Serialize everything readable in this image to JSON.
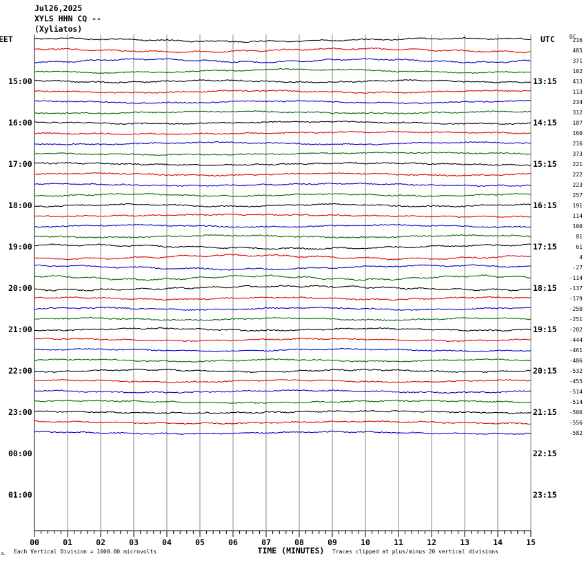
{
  "header": {
    "date": "Jul26,2025",
    "station": "XYLS HHN CQ --",
    "location": "(Xyliatos)"
  },
  "chart_data": {
    "type": "line",
    "title": "",
    "left_zone_label": "EET",
    "right_zone_label": "UTC",
    "dc_header": "DC",
    "xlabel": "TIME (MINUTES)",
    "xlim": [
      0,
      15
    ],
    "x_ticks": [
      "00",
      "01",
      "02",
      "03",
      "04",
      "05",
      "06",
      "07",
      "08",
      "09",
      "10",
      "11",
      "12",
      "13",
      "14",
      "15"
    ],
    "rows_total": 48,
    "trace_colors": [
      "#000000",
      "#dd0000",
      "#0000cc",
      "#006600"
    ],
    "left_hour_labels": [
      {
        "row": 4,
        "label": "15:00"
      },
      {
        "row": 8,
        "label": "16:00"
      },
      {
        "row": 12,
        "label": "17:00"
      },
      {
        "row": 16,
        "label": "18:00"
      },
      {
        "row": 20,
        "label": "19:00"
      },
      {
        "row": 24,
        "label": "20:00"
      },
      {
        "row": 28,
        "label": "21:00"
      },
      {
        "row": 32,
        "label": "22:00"
      },
      {
        "row": 36,
        "label": "23:00"
      },
      {
        "row": 40,
        "label": "00:00"
      },
      {
        "row": 44,
        "label": "01:00"
      }
    ],
    "right_hour_labels": [
      {
        "row": 4,
        "label": "13:15"
      },
      {
        "row": 8,
        "label": "14:15"
      },
      {
        "row": 12,
        "label": "15:15"
      },
      {
        "row": 16,
        "label": "16:15"
      },
      {
        "row": 20,
        "label": "17:15"
      },
      {
        "row": 24,
        "label": "18:15"
      },
      {
        "row": 28,
        "label": "19:15"
      },
      {
        "row": 32,
        "label": "20:15"
      },
      {
        "row": 36,
        "label": "21:15"
      },
      {
        "row": 40,
        "label": "22:15"
      },
      {
        "row": 44,
        "label": "23:15"
      }
    ],
    "dc_offsets": [
      "216",
      "485",
      "371",
      "102",
      "413",
      "113",
      "234",
      "312",
      "187",
      "160",
      "216",
      "373",
      "221",
      "222",
      "223",
      "257",
      "191",
      "114",
      "100",
      "81",
      "61",
      "4",
      "-27",
      "-114",
      "-137",
      "-179",
      "-250",
      "-251",
      "-202",
      "-444",
      "-461",
      "-486",
      "-532",
      "-455",
      "-514",
      "-514",
      "-506",
      "-556",
      "-582"
    ],
    "vertical_division": "Each Vertical Division = 1000.00 microvolts",
    "clip_note": "Traces clipped at plus/minus 20 vertical divisions",
    "corner_mark": "JL"
  }
}
